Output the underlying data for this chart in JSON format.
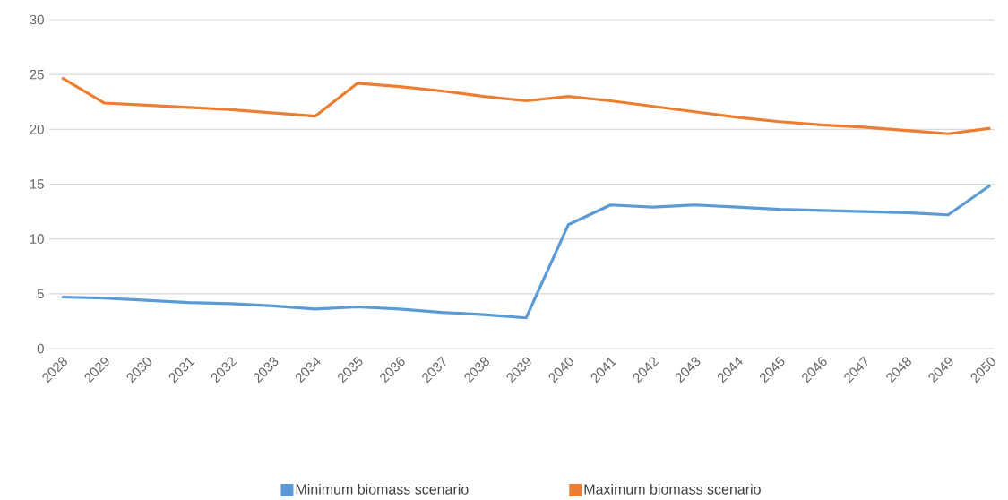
{
  "chart_data": {
    "type": "line",
    "categories": [
      "2028",
      "2029",
      "2030",
      "2031",
      "2032",
      "2033",
      "2034",
      "2035",
      "2036",
      "2037",
      "2038",
      "2039",
      "2040",
      "2041",
      "2042",
      "2043",
      "2044",
      "2045",
      "2046",
      "2047",
      "2048",
      "2049",
      "2050"
    ],
    "series": [
      {
        "name": "Minimum biomass scenario",
        "color": "#5b9bd5",
        "values": [
          4.7,
          4.6,
          4.4,
          4.2,
          4.1,
          3.9,
          3.6,
          3.8,
          3.6,
          3.3,
          3.1,
          2.8,
          11.3,
          13.1,
          12.9,
          13.1,
          12.9,
          12.7,
          12.6,
          12.5,
          12.4,
          12.2,
          14.9
        ]
      },
      {
        "name": "Maximum biomass scenario",
        "color": "#ed7d31",
        "values": [
          24.7,
          22.4,
          22.2,
          22.0,
          21.8,
          21.5,
          21.2,
          24.2,
          23.9,
          23.5,
          23.0,
          22.6,
          23.0,
          22.6,
          22.1,
          21.6,
          21.1,
          20.7,
          20.4,
          20.2,
          19.9,
          19.6,
          20.1
        ]
      }
    ],
    "ylim": [
      0,
      30
    ],
    "yticks": [
      0,
      5,
      10,
      15,
      20,
      25,
      30
    ],
    "grid": "y",
    "legend": "bottom"
  }
}
